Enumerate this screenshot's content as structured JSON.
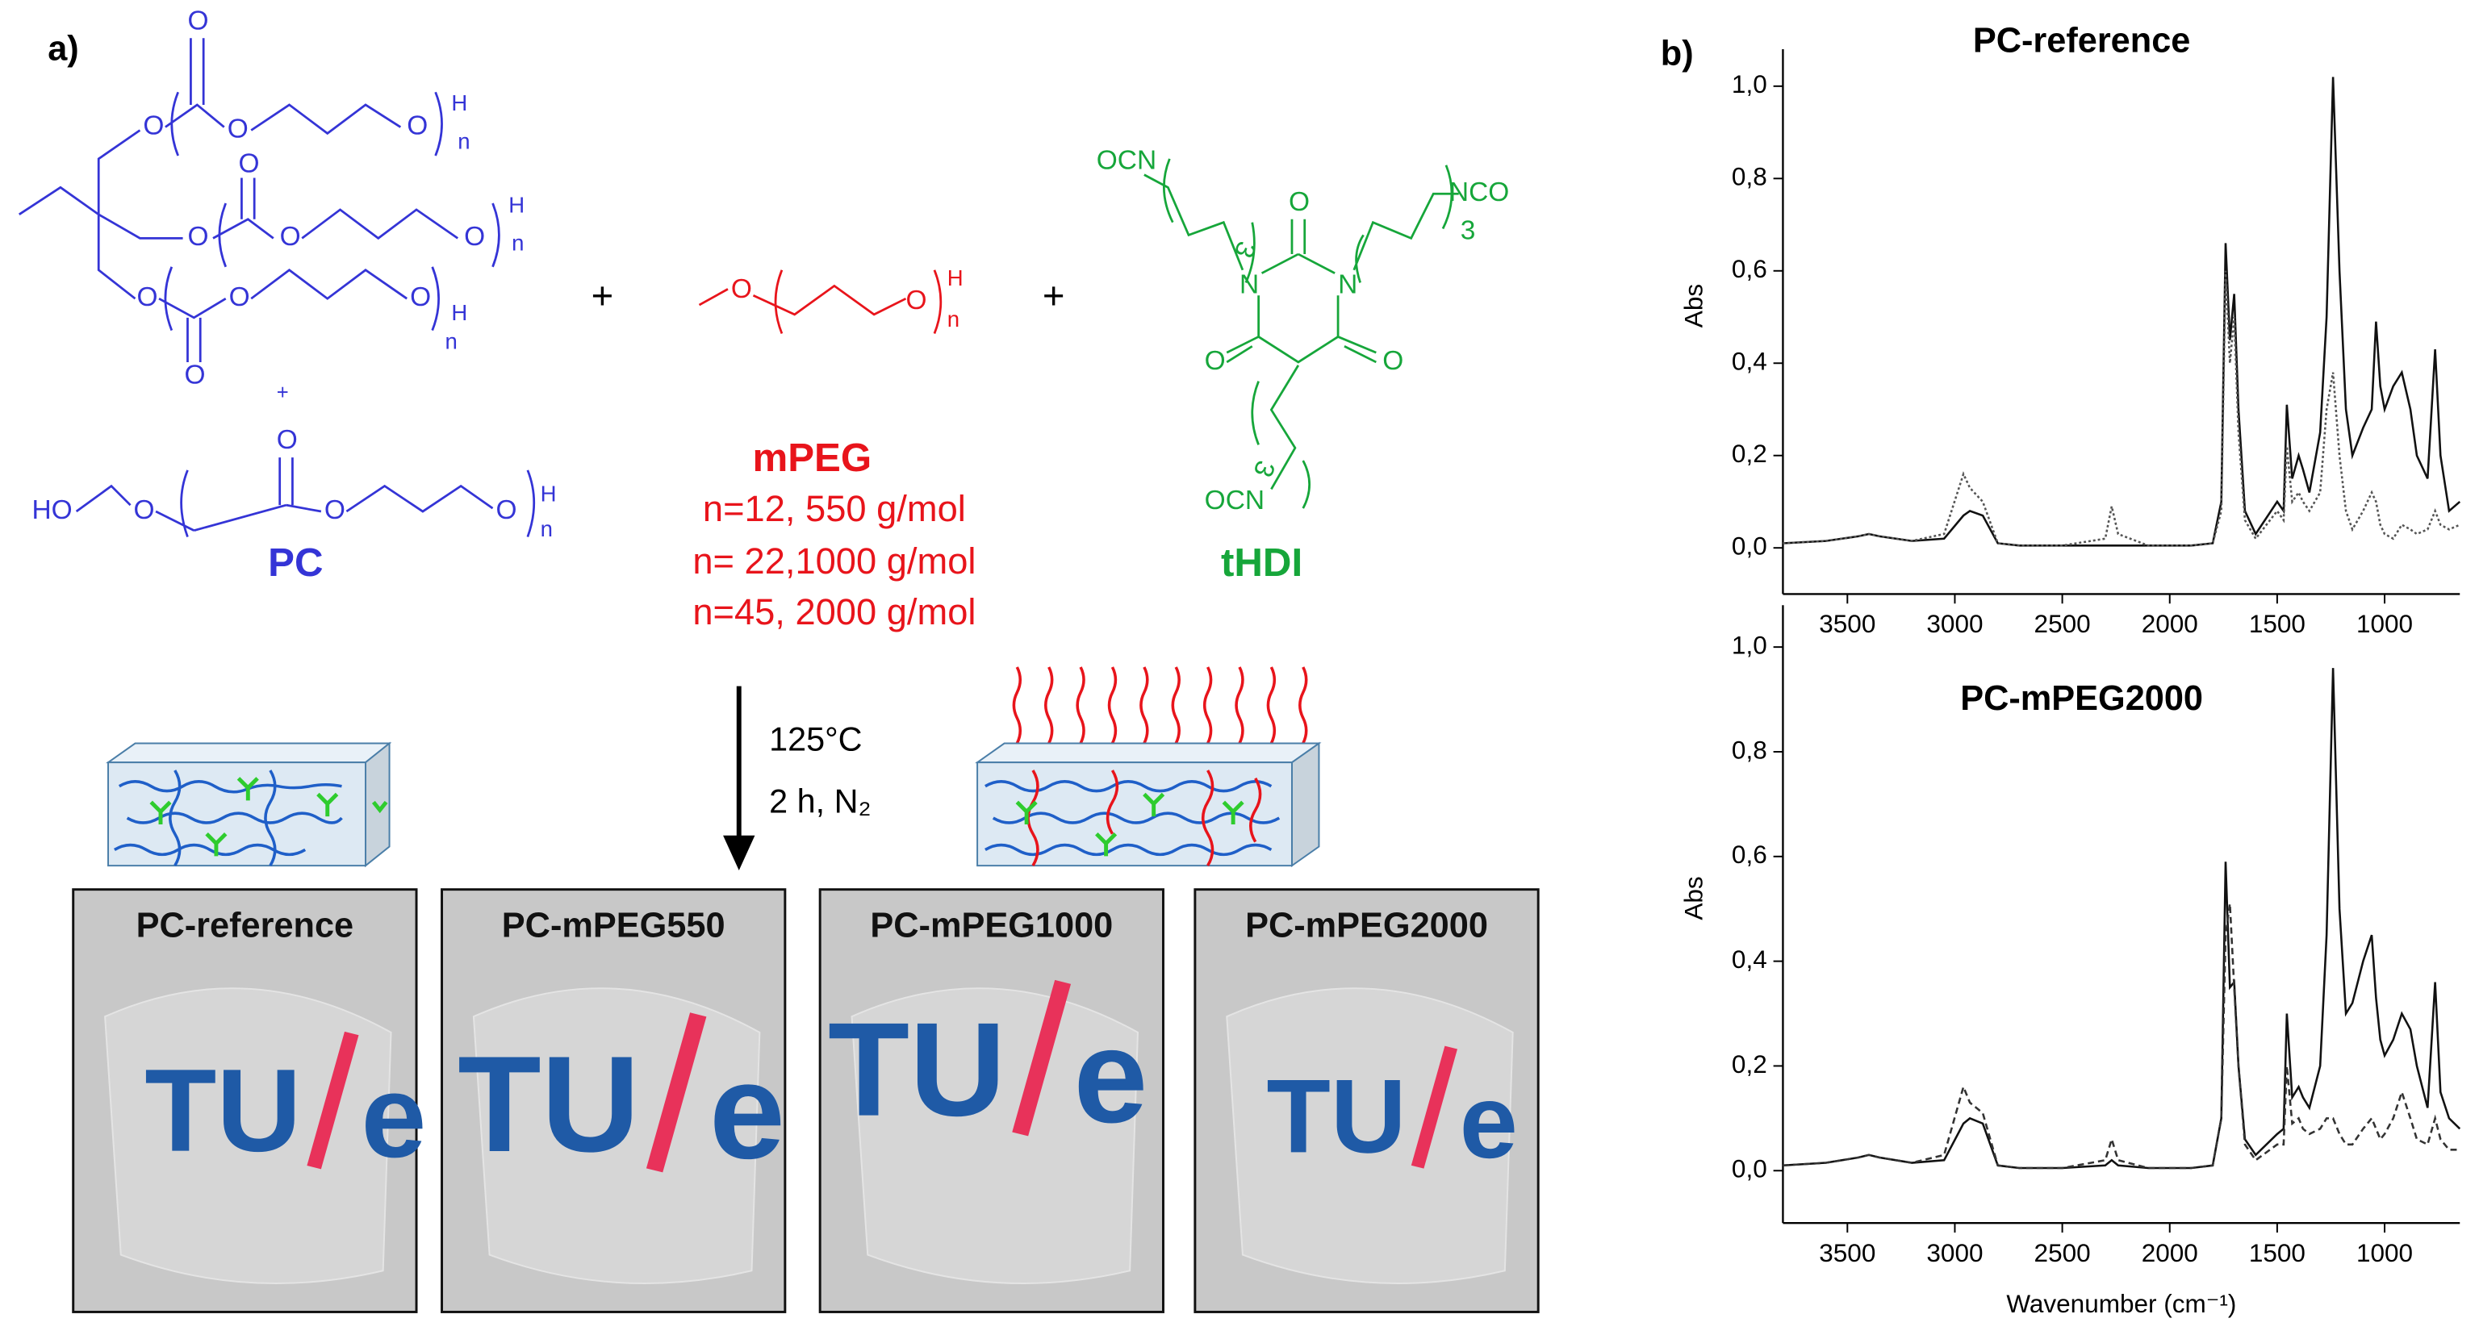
{
  "figure": {
    "panel_a": "a)",
    "panel_b": "b)"
  },
  "scheme": {
    "symbols": {
      "oxygen": "O",
      "hydrogen": "H",
      "repeat": "n",
      "hydroxyl": "HO",
      "isocyanate_left": "OCN",
      "isocyanate_right": "NCO",
      "nitrogen": "N",
      "spacer": "3"
    },
    "plus": "+",
    "pc_name": "PC",
    "mpeg_name": "mPEG",
    "mpeg_grades": [
      "n=12, 550 g/mol",
      "n= 22,1000 g/mol",
      "n=45, 2000 g/mol"
    ],
    "thdi_name": "tHDI",
    "conditions": {
      "temperature": "125°C",
      "time_atmosphere": "2 h, N₂"
    }
  },
  "photos": {
    "samples": [
      "PC-reference",
      "PC-mPEG550",
      "PC-mPEG1000",
      "PC-mPEG2000"
    ],
    "logo": {
      "left": "TU",
      "right": "e"
    }
  },
  "chart_data": [
    {
      "type": "line",
      "title": "PC-reference",
      "ylabel": "Abs",
      "x": [
        3800,
        3600,
        3450,
        3400,
        3350,
        3200,
        3050,
        2960,
        2930,
        2870,
        2800,
        2700,
        2500,
        2300,
        2270,
        2240,
        2100,
        1900,
        1800,
        1760,
        1740,
        1720,
        1700,
        1680,
        1650,
        1600,
        1500,
        1470,
        1455,
        1430,
        1400,
        1380,
        1350,
        1300,
        1270,
        1240,
        1210,
        1180,
        1150,
        1100,
        1060,
        1040,
        1020,
        1000,
        960,
        920,
        880,
        850,
        800,
        765,
        740,
        700,
        650
      ],
      "series": [
        {
          "color": "#111111",
          "line_style": "solid",
          "values": [
            0.01,
            0.015,
            0.025,
            0.03,
            0.025,
            0.015,
            0.02,
            0.07,
            0.08,
            0.07,
            0.01,
            0.005,
            0.005,
            0.005,
            0.005,
            0.005,
            0.005,
            0.005,
            0.01,
            0.1,
            0.66,
            0.45,
            0.55,
            0.3,
            0.08,
            0.03,
            0.1,
            0.08,
            0.31,
            0.15,
            0.2,
            0.17,
            0.12,
            0.25,
            0.5,
            1.02,
            0.6,
            0.3,
            0.2,
            0.26,
            0.3,
            0.49,
            0.35,
            0.3,
            0.35,
            0.38,
            0.3,
            0.2,
            0.15,
            0.43,
            0.2,
            0.08,
            0.1
          ]
        },
        {
          "color": "#555555",
          "line_style": "dotted",
          "values": [
            0.01,
            0.015,
            0.025,
            0.03,
            0.025,
            0.015,
            0.03,
            0.16,
            0.13,
            0.1,
            0.01,
            0.005,
            0.005,
            0.02,
            0.09,
            0.03,
            0.005,
            0.005,
            0.01,
            0.08,
            0.6,
            0.4,
            0.5,
            0.25,
            0.06,
            0.02,
            0.08,
            0.06,
            0.22,
            0.1,
            0.12,
            0.1,
            0.08,
            0.12,
            0.3,
            0.38,
            0.2,
            0.08,
            0.04,
            0.08,
            0.12,
            0.1,
            0.05,
            0.03,
            0.02,
            0.05,
            0.04,
            0.03,
            0.04,
            0.08,
            0.05,
            0.04,
            0.05
          ]
        }
      ],
      "xlim": [
        3800,
        650
      ],
      "xticks": [
        3500,
        3000,
        2500,
        2000,
        1500,
        1000
      ],
      "ylim": [
        -0.1,
        1.08
      ],
      "yticks": [
        {
          "value": 0,
          "label": "0,0"
        },
        {
          "value": 0.2,
          "label": "0,2"
        },
        {
          "value": 0.4,
          "label": "0,4"
        },
        {
          "value": 0.6,
          "label": "0,6"
        },
        {
          "value": 0.8,
          "label": "0,8"
        },
        {
          "value": 1.0,
          "label": "1,0"
        }
      ]
    },
    {
      "type": "line",
      "title": "PC-mPEG2000",
      "ylabel": "Abs",
      "xlabel": "Wavenumber (cm⁻¹)",
      "x": [
        3800,
        3600,
        3450,
        3400,
        3350,
        3200,
        3050,
        2960,
        2930,
        2870,
        2800,
        2700,
        2500,
        2300,
        2270,
        2240,
        2100,
        1900,
        1800,
        1760,
        1740,
        1720,
        1700,
        1680,
        1650,
        1600,
        1500,
        1470,
        1455,
        1430,
        1400,
        1380,
        1350,
        1300,
        1270,
        1240,
        1210,
        1180,
        1150,
        1100,
        1060,
        1040,
        1020,
        1000,
        960,
        920,
        880,
        850,
        800,
        765,
        740,
        700,
        650
      ],
      "series": [
        {
          "color": "#111111",
          "line_style": "solid",
          "values": [
            0.01,
            0.015,
            0.025,
            0.03,
            0.025,
            0.015,
            0.02,
            0.09,
            0.1,
            0.09,
            0.01,
            0.005,
            0.005,
            0.01,
            0.02,
            0.01,
            0.005,
            0.005,
            0.01,
            0.1,
            0.59,
            0.35,
            0.36,
            0.2,
            0.06,
            0.03,
            0.07,
            0.08,
            0.3,
            0.14,
            0.16,
            0.14,
            0.12,
            0.2,
            0.45,
            0.96,
            0.5,
            0.3,
            0.32,
            0.4,
            0.45,
            0.33,
            0.25,
            0.22,
            0.25,
            0.3,
            0.27,
            0.2,
            0.12,
            0.36,
            0.15,
            0.1,
            0.08
          ]
        },
        {
          "color": "#333333",
          "line_style": "dashed",
          "values": [
            0.01,
            0.015,
            0.025,
            0.03,
            0.025,
            0.015,
            0.03,
            0.16,
            0.13,
            0.11,
            0.01,
            0.005,
            0.005,
            0.02,
            0.06,
            0.02,
            0.005,
            0.005,
            0.01,
            0.1,
            0.45,
            0.51,
            0.35,
            0.2,
            0.05,
            0.02,
            0.05,
            0.05,
            0.2,
            0.09,
            0.1,
            0.08,
            0.07,
            0.08,
            0.1,
            0.1,
            0.07,
            0.05,
            0.05,
            0.08,
            0.1,
            0.08,
            0.06,
            0.07,
            0.1,
            0.15,
            0.1,
            0.06,
            0.05,
            0.1,
            0.06,
            0.04,
            0.04
          ]
        }
      ],
      "xlim": [
        3800,
        650
      ],
      "xticks": [
        3500,
        3000,
        2500,
        2000,
        1500,
        1000
      ],
      "ylim": [
        -0.1,
        1.08
      ],
      "yticks": [
        {
          "value": 0,
          "label": "0,0"
        },
        {
          "value": 0.2,
          "label": "0,2"
        },
        {
          "value": 0.4,
          "label": "0,4"
        },
        {
          "value": 0.6,
          "label": "0,6"
        },
        {
          "value": 0.8,
          "label": "0,8"
        },
        {
          "value": 1.0,
          "label": "1,0"
        }
      ]
    }
  ]
}
